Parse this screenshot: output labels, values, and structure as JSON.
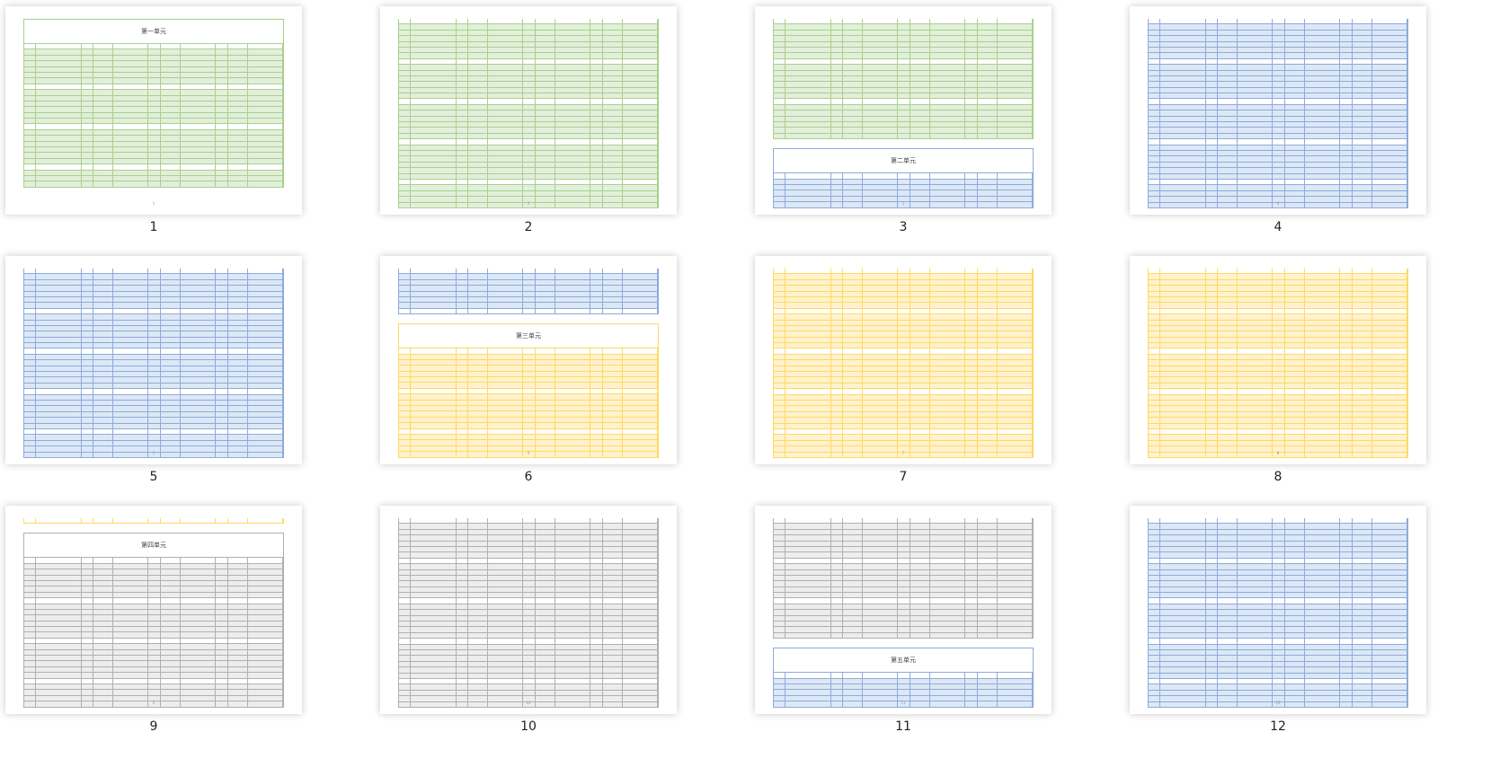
{
  "themes": {
    "green": {
      "border": "#a9d08e",
      "fill": "#e2efda"
    },
    "blue": {
      "border": "#8eaadb",
      "fill": "#dde8f6"
    },
    "yellow": {
      "border": "#ffd966",
      "fill": "#fff2cc"
    },
    "gray": {
      "border": "#b0b0b0",
      "fill": "#ededed"
    }
  },
  "pages": [
    {
      "label": "1",
      "footer": "1",
      "segments": [
        {
          "title": "第一单元",
          "theme": "green"
        },
        {
          "rows": 25,
          "theme": "green"
        }
      ]
    },
    {
      "label": "2",
      "footer": "2",
      "segments": [
        {
          "rows": 33,
          "theme": "green"
        }
      ]
    },
    {
      "label": "3",
      "footer": "3",
      "segments": [
        {
          "rows": 21,
          "theme": "green"
        },
        {
          "gap": true
        },
        {
          "title": "第二单元",
          "theme": "blue"
        },
        {
          "rows": 6,
          "theme": "blue"
        }
      ]
    },
    {
      "label": "4",
      "footer": "4",
      "segments": [
        {
          "rows": 33,
          "theme": "blue"
        }
      ]
    },
    {
      "label": "5",
      "footer": "5",
      "segments": [
        {
          "rows": 33,
          "theme": "blue"
        }
      ]
    },
    {
      "label": "6",
      "footer": "6",
      "segments": [
        {
          "rows": 8,
          "theme": "blue"
        },
        {
          "gap": true
        },
        {
          "title": "第三单元",
          "theme": "yellow"
        },
        {
          "rows": 19,
          "theme": "yellow"
        }
      ]
    },
    {
      "label": "7",
      "footer": "7",
      "segments": [
        {
          "rows": 33,
          "theme": "yellow"
        }
      ]
    },
    {
      "label": "8",
      "footer": "8",
      "segments": [
        {
          "rows": 33,
          "theme": "yellow"
        }
      ]
    },
    {
      "label": "9",
      "footer": "9",
      "segments": [
        {
          "rows": 1,
          "theme": "yellow"
        },
        {
          "gap": true
        },
        {
          "title": "第四单元",
          "theme": "gray"
        },
        {
          "rows": 26,
          "theme": "gray"
        }
      ]
    },
    {
      "label": "10",
      "footer": "10",
      "segments": [
        {
          "rows": 33,
          "theme": "gray"
        }
      ]
    },
    {
      "label": "11",
      "footer": "11",
      "segments": [
        {
          "rows": 21,
          "theme": "gray"
        },
        {
          "gap": true
        },
        {
          "title": "第五单元",
          "theme": "blue"
        },
        {
          "rows": 6,
          "theme": "blue"
        }
      ]
    },
    {
      "label": "12",
      "footer": "12",
      "segments": [
        {
          "rows": 33,
          "theme": "blue"
        }
      ]
    }
  ]
}
